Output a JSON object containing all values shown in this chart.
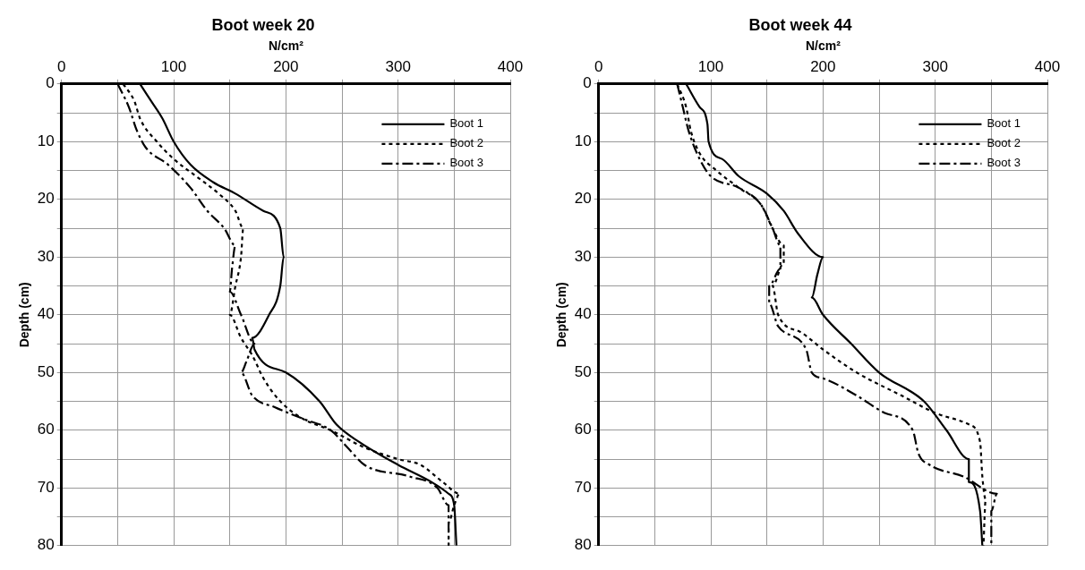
{
  "chart_data": [
    {
      "type": "line",
      "title": "Boot week 20",
      "xlabel": "N/cm²",
      "ylabel": "Depth (cm)",
      "xlim": [
        0,
        400
      ],
      "xticks": [
        0,
        {
          "value": 50,
          "label": null
        },
        100,
        {
          "value": 150,
          "label": null
        },
        200,
        {
          "value": 250,
          "label": null
        },
        300,
        {
          "value": 350,
          "label": null
        },
        400
      ],
      "ylim": [
        80,
        0
      ],
      "yticks": [
        0,
        {
          "value": 5,
          "label": null
        },
        10,
        {
          "value": 15,
          "label": null
        },
        20,
        {
          "value": 25,
          "label": null
        },
        30,
        {
          "value": 35,
          "label": null
        },
        40,
        {
          "value": 45,
          "label": null
        },
        50,
        {
          "value": 55,
          "label": null
        },
        60,
        {
          "value": 65,
          "label": null
        },
        70,
        {
          "value": 75,
          "label": null
        },
        80
      ],
      "grid": true,
      "legend": "top right",
      "marker": "none",
      "series": [
        {
          "name": "Boot 1",
          "color": "#000000",
          "line_style": "solid",
          "x": [
            70,
            80,
            90,
            100,
            115,
            135,
            155,
            180,
            195,
            198,
            195,
            185,
            170,
            172,
            200,
            230,
            245,
            265,
            300,
            330,
            345,
            350,
            352
          ],
          "values": [
            0,
            3,
            6,
            10,
            14,
            17,
            19,
            22,
            25,
            30,
            35,
            40,
            44,
            46,
            50,
            55,
            59,
            62,
            66,
            69,
            71,
            73,
            80
          ]
        },
        {
          "name": "Boot 2",
          "color": "#000000",
          "line_style": "dotted",
          "x": [
            55,
            65,
            70,
            85,
            100,
            120,
            140,
            155,
            162,
            160,
            155,
            150,
            160,
            170,
            180,
            195,
            215,
            240,
            270,
            300,
            320,
            340,
            355,
            350,
            345,
            345
          ],
          "values": [
            0,
            3,
            6,
            10,
            13,
            16,
            19,
            22,
            25,
            30,
            35,
            40,
            44,
            47,
            51,
            55,
            58,
            60,
            63,
            65,
            66,
            69,
            71,
            73,
            76,
            80
          ]
        },
        {
          "name": "Boot 3",
          "color": "#000000",
          "line_style": "dashed",
          "x": [
            50,
            60,
            67,
            75,
            95,
            115,
            130,
            145,
            155,
            152,
            150,
            160,
            172,
            165,
            160,
            170,
            190,
            215,
            240,
            255,
            270,
            310,
            335,
            345,
            345
          ],
          "values": [
            0,
            4,
            8,
            11,
            14,
            18,
            22,
            25,
            28,
            32,
            36,
            40,
            45,
            48,
            50,
            54,
            56,
            58,
            60,
            63,
            66,
            68,
            70,
            73,
            80
          ]
        }
      ]
    },
    {
      "type": "line",
      "title": "Boot week 44",
      "xlabel": "N/cm²",
      "ylabel": "Depth (cm)",
      "xlim": [
        0,
        400
      ],
      "xticks": [
        0,
        {
          "value": 50,
          "label": null
        },
        100,
        {
          "value": 150,
          "label": null
        },
        200,
        {
          "value": 250,
          "label": null
        },
        300,
        {
          "value": 350,
          "label": null
        },
        400
      ],
      "ylim": [
        80,
        0
      ],
      "yticks": [
        0,
        {
          "value": 5,
          "label": null
        },
        10,
        {
          "value": 15,
          "label": null
        },
        20,
        {
          "value": 25,
          "label": null
        },
        30,
        {
          "value": 35,
          "label": null
        },
        40,
        {
          "value": 45,
          "label": null
        },
        50,
        {
          "value": 55,
          "label": null
        },
        60,
        {
          "value": 65,
          "label": null
        },
        70,
        {
          "value": 75,
          "label": null
        },
        80
      ],
      "grid": true,
      "legend": "top right",
      "marker": "none",
      "series": [
        {
          "name": "Boot 1",
          "color": "#000000",
          "line_style": "solid",
          "x": [
            78,
            90,
            97,
            98,
            110,
            125,
            150,
            165,
            178,
            200,
            195,
            190,
            200,
            225,
            250,
            290,
            310,
            330,
            330,
            340,
            342
          ],
          "values": [
            0,
            4,
            7,
            10,
            13,
            16,
            19,
            22,
            26,
            30,
            33,
            37,
            40,
            45,
            50,
            55,
            60,
            65,
            69,
            74,
            80
          ]
        },
        {
          "name": "Boot 2",
          "color": "#000000",
          "line_style": "dotted",
          "x": [
            70,
            78,
            82,
            90,
            105,
            125,
            145,
            155,
            165,
            165,
            155,
            160,
            180,
            200,
            230,
            270,
            300,
            330,
            340,
            342,
            345,
            343
          ],
          "values": [
            0,
            4,
            8,
            12,
            15,
            18,
            21,
            25,
            28,
            31,
            35,
            40,
            43,
            46,
            50,
            54,
            57,
            59,
            62,
            68,
            72,
            80
          ]
        },
        {
          "name": "Boot 3",
          "color": "#000000",
          "line_style": "dashed",
          "x": [
            70,
            75,
            80,
            90,
            100,
            125,
            145,
            155,
            162,
            162,
            152,
            152,
            160,
            185,
            190,
            200,
            230,
            255,
            280,
            285,
            295,
            325,
            355,
            350,
            350
          ],
          "values": [
            0,
            4,
            8,
            13,
            16,
            18,
            21,
            25,
            28,
            32,
            35,
            38,
            42,
            46,
            50,
            51,
            54,
            57,
            60,
            64,
            66,
            68,
            71,
            74,
            80
          ]
        }
      ]
    }
  ]
}
